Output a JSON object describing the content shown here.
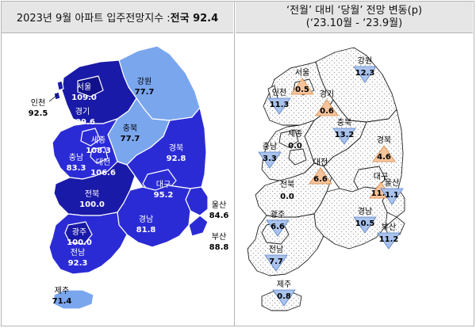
{
  "left_header": {
    "title": "2023년 9월 아파트 입주전망지수 : ",
    "national": "전국 92.4"
  },
  "right_header": {
    "line1": "‘전월’ 대비 ‘당월’ 전망 변동(p)",
    "line2": "(‘23.10월 - ‘23.9월)"
  },
  "colors": {
    "dark": "#1a1aa8",
    "medium": "#2b2bd6",
    "light": "#7aa6ee",
    "up": "#f6c49b",
    "down": "#a9c3ec",
    "flat": "#ffffff"
  },
  "left_regions": [
    {
      "name": "서울",
      "value": "109.0"
    },
    {
      "name": "경기",
      "value": "109.6"
    },
    {
      "name": "인천",
      "value": "92.5"
    },
    {
      "name": "강원",
      "value": "77.7"
    },
    {
      "name": "충북",
      "value": "77.7"
    },
    {
      "name": "세종",
      "value": "108.3"
    },
    {
      "name": "충남",
      "value": "83.3"
    },
    {
      "name": "대전",
      "value": "106.6"
    },
    {
      "name": "경북",
      "value": "92.8"
    },
    {
      "name": "대구",
      "value": "95.2"
    },
    {
      "name": "전북",
      "value": "100.0"
    },
    {
      "name": "울산",
      "value": "84.6"
    },
    {
      "name": "경남",
      "value": "81.8"
    },
    {
      "name": "부산",
      "value": "88.8"
    },
    {
      "name": "광주",
      "value": "100.0"
    },
    {
      "name": "전남",
      "value": "92.3"
    },
    {
      "name": "제주",
      "value": "71.4"
    }
  ],
  "right_regions": [
    {
      "name": "서울",
      "value": "0.5",
      "dir": "up"
    },
    {
      "name": "경기",
      "value": "0.6",
      "dir": "up"
    },
    {
      "name": "인천",
      "value": "11.3",
      "dir": "down"
    },
    {
      "name": "강원",
      "value": "12.3",
      "dir": "down"
    },
    {
      "name": "충북",
      "value": "13.2",
      "dir": "down"
    },
    {
      "name": "세종",
      "value": "0.0",
      "dir": "flat"
    },
    {
      "name": "충남",
      "value": "3.3",
      "dir": "down"
    },
    {
      "name": "대전",
      "value": "6.6",
      "dir": "up"
    },
    {
      "name": "경북",
      "value": "4.6",
      "dir": "up"
    },
    {
      "name": "대구",
      "value": "11.0",
      "dir": "up"
    },
    {
      "name": "전북",
      "value": "0.0",
      "dir": "flat"
    },
    {
      "name": "울산",
      "value": "1.1",
      "dir": "down"
    },
    {
      "name": "경남",
      "value": "10.5",
      "dir": "down"
    },
    {
      "name": "부산",
      "value": "11.2",
      "dir": "down"
    },
    {
      "name": "광주",
      "value": "6.6",
      "dir": "down"
    },
    {
      "name": "전남",
      "value": "7.7",
      "dir": "down"
    },
    {
      "name": "제주",
      "value": "0.8",
      "dir": "down"
    }
  ]
}
